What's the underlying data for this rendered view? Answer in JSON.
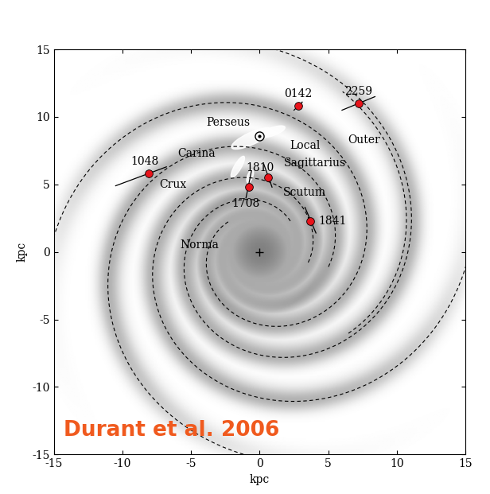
{
  "chart_data": {
    "type": "scatter",
    "xlabel": "kpc",
    "ylabel": "kpc",
    "xlim": [
      -15,
      15
    ],
    "ylim": [
      -15,
      15
    ],
    "xticks": [
      -15,
      -10,
      -5,
      0,
      5,
      10,
      15
    ],
    "yticks": [
      -15,
      -10,
      -5,
      0,
      5,
      10,
      15
    ],
    "color": "#e8141b",
    "marker": "circle",
    "sources": [
      {
        "name": "0142",
        "x": 2.8,
        "y": 10.8,
        "err_x": [
          2.5,
          3.1
        ],
        "err_y": [
          10.5,
          11.1
        ],
        "label_xy": [
          2.8,
          11.7
        ]
      },
      {
        "name": "2259",
        "x": 7.2,
        "y": 11.0,
        "err_x": [
          6.0,
          8.4
        ],
        "err_y": [
          10.5,
          11.5
        ],
        "label_xy": [
          7.2,
          11.9
        ]
      },
      {
        "name": "1048",
        "x": -8.1,
        "y": 5.8,
        "err_x": [
          -10.5,
          -6.8
        ],
        "err_y": [
          4.9,
          6.3
        ],
        "label_xy": [
          -8.4,
          6.7
        ]
      },
      {
        "name": "1810",
        "x": 0.6,
        "y": 5.5,
        "err_x": [
          0.3,
          0.9
        ],
        "err_y": [
          6.5,
          4.8
        ],
        "label_xy": [
          0.0,
          6.2
        ]
      },
      {
        "name": "1708",
        "x": -0.8,
        "y": 4.8,
        "err_x": [
          -0.6,
          -1.0
        ],
        "err_y": [
          6.0,
          4.0
        ],
        "label_xy": [
          -1.0,
          3.6
        ]
      },
      {
        "name": "1841",
        "x": 3.7,
        "y": 2.3,
        "err_x": [
          3.3,
          4.1
        ],
        "err_y": [
          3.3,
          1.4
        ],
        "label_xy": [
          5.3,
          2.3
        ]
      }
    ],
    "annotations": [
      {
        "text": "Perseus",
        "x": -2.3,
        "y": 9.6
      },
      {
        "text": "Local",
        "x": 3.3,
        "y": 7.9
      },
      {
        "text": "Carina",
        "x": -4.6,
        "y": 7.3
      },
      {
        "text": "Sagittarius",
        "x": 4.0,
        "y": 6.6
      },
      {
        "text": "Crux",
        "x": -6.3,
        "y": 5.0
      },
      {
        "text": "Scutum",
        "x": 3.3,
        "y": 4.4
      },
      {
        "text": "Norma",
        "x": -4.4,
        "y": 0.5
      },
      {
        "text": "Outer",
        "x": 7.6,
        "y": 8.3
      },
      {
        "text": "Durant et al. 2006",
        "x": -14.3,
        "y": -14.0,
        "color": "#f05a1e"
      }
    ]
  }
}
